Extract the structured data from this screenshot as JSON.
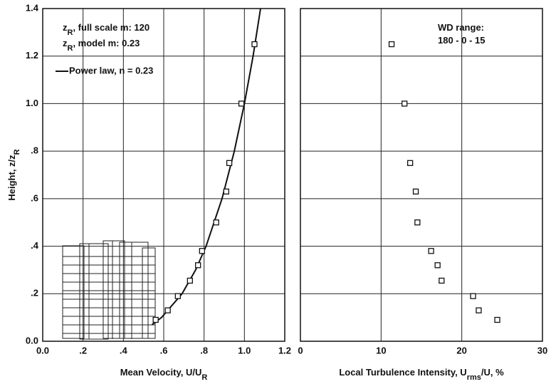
{
  "chart_data": [
    {
      "type": "scatter",
      "x_label": [
        "Mean Velocity, U/U",
        "R"
      ],
      "y_label": [
        "Height, z/z",
        "R"
      ],
      "xlim": [
        0,
        1.2
      ],
      "ylim": [
        0,
        1.4
      ],
      "xticks": [
        {
          "value": 0,
          "label": "0.0"
        },
        {
          "value": 0.2,
          "label": ".2"
        },
        {
          "value": 0.4,
          "label": ".4"
        },
        {
          "value": 0.6,
          "label": ".6"
        },
        {
          "value": 0.8,
          "label": ".8"
        },
        {
          "value": 1,
          "label": "1.0"
        },
        1.2
      ],
      "yticks": [
        {
          "value": 0,
          "label": "0.0"
        },
        {
          "value": 0.2,
          "label": ".2"
        },
        {
          "value": 0.4,
          "label": ".4"
        },
        {
          "value": 0.6,
          "label": ".6"
        },
        {
          "value": 0.8,
          "label": ".8"
        },
        {
          "value": 1,
          "label": "1.0"
        },
        1.2,
        1.4
      ],
      "grid": true,
      "color": "#111111",
      "x": [
        0.56,
        0.62,
        0.67,
        0.73,
        0.77,
        0.79,
        0.86,
        0.91,
        0.925,
        0.985,
        1.05
      ],
      "values": [
        0.09,
        0.13,
        0.19,
        0.255,
        0.32,
        0.38,
        0.5,
        0.63,
        0.75,
        1.0,
        1.25
      ],
      "line": {
        "name": "Power law, n = 0.23",
        "color": "#111111",
        "x": [
          0.542,
          0.589,
          0.691,
          0.758,
          0.81,
          0.889,
          0.95,
          1.0,
          1.043,
          1.08
        ],
        "values": [
          0.07,
          0.1,
          0.2,
          0.3,
          0.4,
          0.6,
          0.8,
          1.0,
          1.2,
          1.4
        ]
      },
      "annotations": [
        [
          "z",
          "R",
          ", full scale m: 120"
        ],
        [
          "z",
          "R",
          ", model m:   0.23"
        ]
      ]
    },
    {
      "type": "scatter",
      "x_label": [
        "Local Turbulence Intensity, U",
        "rms",
        "/U, %"
      ],
      "xlim": [
        0,
        30
      ],
      "ylim": [
        0,
        1.4
      ],
      "xticks": [
        0,
        10,
        20,
        30
      ],
      "yticks": [
        0,
        0.2,
        0.4,
        0.6,
        0.8,
        1.0,
        1.2,
        1.4
      ],
      "grid": true,
      "color": "#111111",
      "x": [
        11.3,
        12.9,
        13.6,
        14.3,
        14.5,
        16.2,
        17.0,
        17.5,
        21.4,
        22.1,
        24.4
      ],
      "values": [
        1.25,
        1.0,
        0.75,
        0.63,
        0.5,
        0.38,
        0.32,
        0.255,
        0.19,
        0.13,
        0.09
      ],
      "annotations": [
        [
          "WD range:"
        ],
        [
          "180 - 0 - 15"
        ]
      ]
    }
  ]
}
